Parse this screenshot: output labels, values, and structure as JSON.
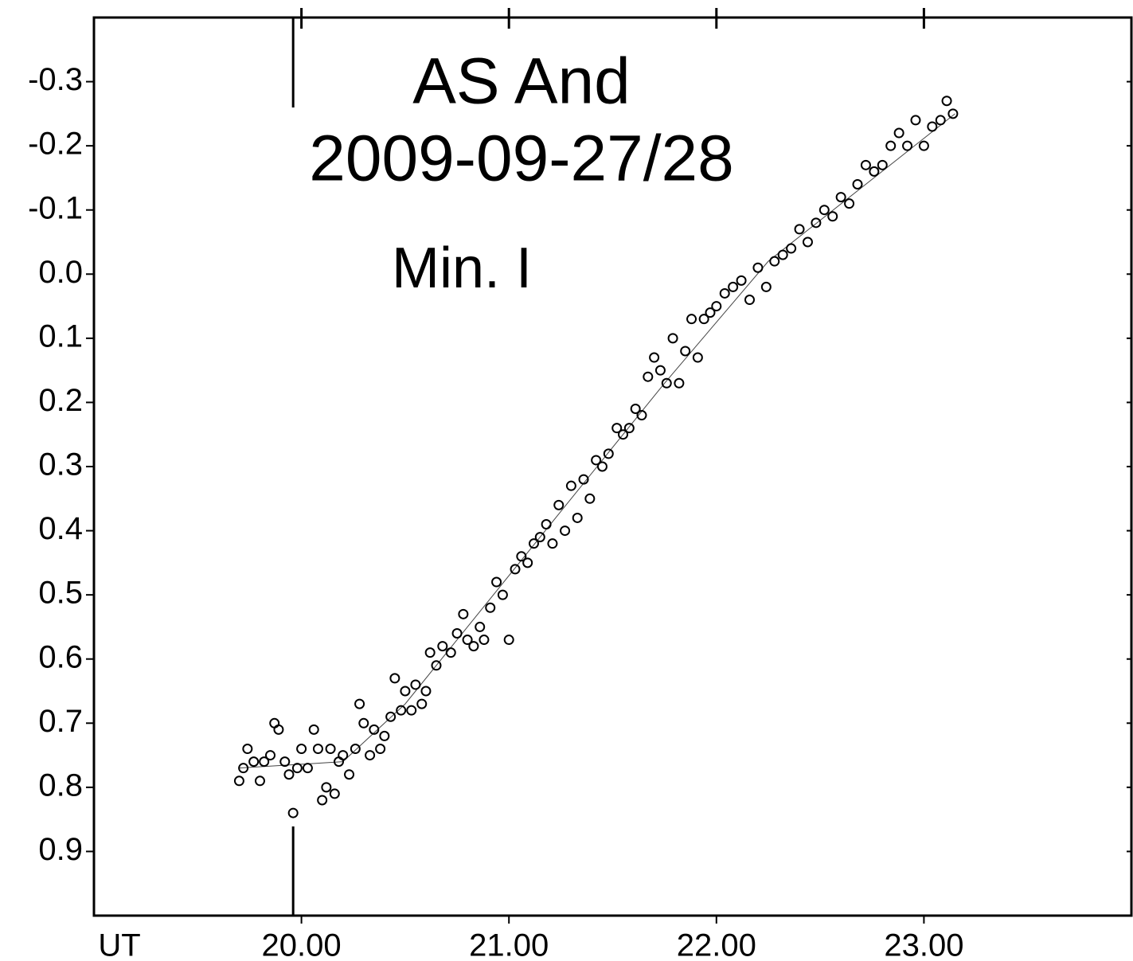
{
  "chart_data": {
    "type": "scatter",
    "title": "AS And",
    "subtitle": "2009-09-27/28",
    "annotations": [
      "Min. I"
    ],
    "x_label": "UT",
    "color": "#000000",
    "xlim": [
      19,
      24
    ],
    "ylim": [
      -0.4,
      1.0
    ],
    "y_inverted": true,
    "xticks": [
      {
        "value": 20,
        "label": "20.00"
      },
      {
        "value": 21,
        "label": "21.00"
      },
      {
        "value": 22,
        "label": "22.00"
      },
      {
        "value": 23,
        "label": "23.00"
      }
    ],
    "yticks": [
      -0.3,
      -0.2,
      -0.1,
      {
        "value": 0,
        "label": "0.0"
      },
      0.1,
      0.2,
      0.3,
      0.4,
      0.5,
      0.6,
      0.7,
      0.8,
      0.9
    ],
    "min_marker_x": 19.96,
    "x": [
      19.7,
      19.72,
      19.74,
      19.77,
      19.8,
      19.82,
      19.85,
      19.87,
      19.89,
      19.92,
      19.94,
      19.96,
      19.98,
      20.0,
      20.03,
      20.06,
      20.08,
      20.1,
      20.12,
      20.14,
      20.16,
      20.18,
      20.2,
      20.23,
      20.26,
      20.28,
      20.3,
      20.33,
      20.35,
      20.38,
      20.4,
      20.43,
      20.45,
      20.48,
      20.5,
      20.53,
      20.55,
      20.58,
      20.6,
      20.62,
      20.65,
      20.68,
      20.72,
      20.75,
      20.78,
      20.8,
      20.83,
      20.86,
      20.88,
      20.91,
      20.94,
      20.97,
      21.0,
      21.03,
      21.06,
      21.09,
      21.12,
      21.15,
      21.18,
      21.21,
      21.24,
      21.27,
      21.3,
      21.33,
      21.36,
      21.39,
      21.42,
      21.45,
      21.48,
      21.52,
      21.55,
      21.58,
      21.61,
      21.64,
      21.67,
      21.7,
      21.73,
      21.76,
      21.79,
      21.82,
      21.85,
      21.88,
      21.91,
      21.94,
      21.97,
      22.0,
      22.04,
      22.08,
      22.12,
      22.16,
      22.2,
      22.24,
      22.28,
      22.32,
      22.36,
      22.4,
      22.44,
      22.48,
      22.52,
      22.56,
      22.6,
      22.64,
      22.68,
      22.72,
      22.76,
      22.8,
      22.84,
      22.88,
      22.92,
      22.96,
      23.0,
      23.04,
      23.08,
      23.11,
      23.14
    ],
    "values": [
      0.79,
      0.77,
      0.74,
      0.76,
      0.79,
      0.76,
      0.75,
      0.7,
      0.71,
      0.76,
      0.78,
      0.84,
      0.77,
      0.74,
      0.77,
      0.71,
      0.74,
      0.82,
      0.8,
      0.74,
      0.81,
      0.76,
      0.75,
      0.78,
      0.74,
      0.67,
      0.7,
      0.75,
      0.71,
      0.74,
      0.72,
      0.69,
      0.63,
      0.68,
      0.65,
      0.68,
      0.64,
      0.67,
      0.65,
      0.59,
      0.61,
      0.58,
      0.59,
      0.56,
      0.53,
      0.57,
      0.58,
      0.55,
      0.57,
      0.52,
      0.48,
      0.5,
      0.57,
      0.46,
      0.44,
      0.45,
      0.42,
      0.41,
      0.39,
      0.42,
      0.36,
      0.4,
      0.33,
      0.38,
      0.32,
      0.35,
      0.29,
      0.3,
      0.28,
      0.24,
      0.25,
      0.24,
      0.21,
      0.22,
      0.16,
      0.13,
      0.15,
      0.17,
      0.1,
      0.17,
      0.12,
      0.07,
      0.13,
      0.07,
      0.06,
      0.05,
      0.03,
      0.02,
      0.01,
      0.04,
      -0.01,
      0.02,
      -0.02,
      -0.03,
      -0.04,
      -0.07,
      -0.05,
      -0.08,
      -0.1,
      -0.09,
      -0.12,
      -0.11,
      -0.14,
      -0.17,
      -0.16,
      -0.17,
      -0.2,
      -0.22,
      -0.2,
      -0.24,
      -0.2,
      -0.23,
      -0.24,
      -0.27,
      -0.25
    ],
    "fit": {
      "x": [
        19.7,
        20.2,
        20.5,
        20.75,
        21.75,
        22.25,
        23.15
      ],
      "values": [
        0.77,
        0.76,
        0.67,
        0.57,
        0.17,
        -0.02,
        -0.25
      ]
    }
  }
}
